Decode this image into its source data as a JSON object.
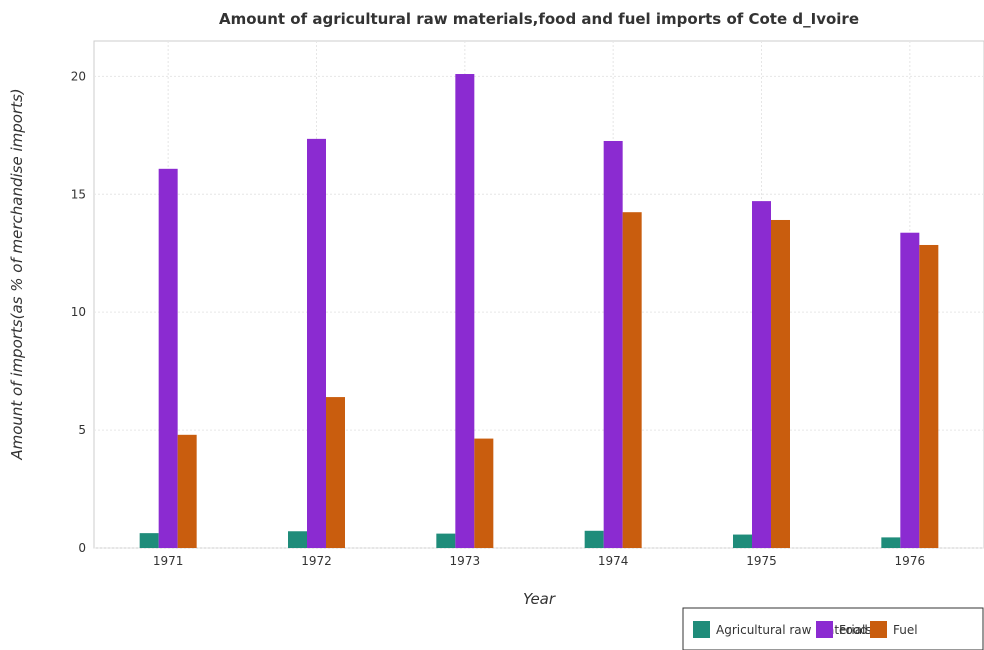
{
  "chart_data": {
    "type": "bar",
    "title": "Amount of agricultural raw materials,food and fuel imports of Cote d_Ivoire",
    "xlabel": "Year",
    "ylabel": "Amount of imports(as % of merchandise imports)",
    "categories": [
      "1971",
      "1972",
      "1973",
      "1974",
      "1975",
      "1976"
    ],
    "series": [
      {
        "name": "Agricultural raw materials",
        "color": "#1f8c7a",
        "values": [
          0.63,
          0.71,
          0.61,
          0.73,
          0.57,
          0.45
        ]
      },
      {
        "name": "Food",
        "color": "#8b2bd1",
        "values": [
          16.08,
          17.35,
          20.1,
          17.26,
          14.71,
          13.37
        ]
      },
      {
        "name": "Fuel",
        "color": "#c95d0e",
        "values": [
          4.8,
          6.4,
          4.64,
          14.24,
          13.91,
          12.85
        ]
      }
    ],
    "ylim": [
      0,
      21.5
    ],
    "yticks": [
      0,
      5,
      10,
      15,
      20
    ],
    "grid": true,
    "legend_position": "bottom-right"
  }
}
